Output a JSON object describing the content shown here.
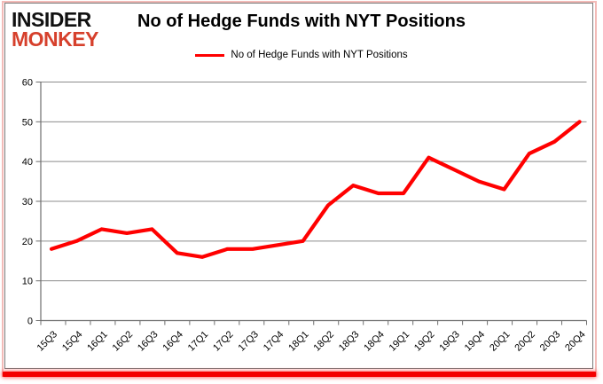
{
  "branding": {
    "line1": "INSIDER",
    "line2": "MONKEY",
    "accent_color": "#d6402c"
  },
  "legend": {
    "label": "No of Hedge Funds with NYT Positions",
    "line_color": "#ff0000"
  },
  "chart_data": {
    "type": "line",
    "title": "No of Hedge Funds with NYT Positions",
    "categories": [
      "15Q3",
      "15Q4",
      "16Q1",
      "16Q2",
      "16Q3",
      "16Q4",
      "17Q1",
      "17Q2",
      "17Q3",
      "17Q4",
      "18Q1",
      "18Q2",
      "18Q3",
      "18Q4",
      "19Q1",
      "19Q2",
      "19Q3",
      "19Q4",
      "20Q1",
      "20Q2",
      "20Q3",
      "20Q4"
    ],
    "series": [
      {
        "name": "No of Hedge Funds with NYT Positions",
        "color": "#ff0000",
        "values": [
          18,
          20,
          23,
          22,
          23,
          17,
          16,
          18,
          18,
          19,
          20,
          29,
          34,
          32,
          32,
          41,
          38,
          35,
          33,
          42,
          45,
          50
        ]
      }
    ],
    "xlabel": "",
    "ylabel": "",
    "ylim": [
      0,
      60
    ],
    "yticks": [
      0,
      10,
      20,
      30,
      40,
      50,
      60
    ],
    "grid": true,
    "legend_position": "top-center",
    "colors": {
      "gridline": "#8c8c8c",
      "axis": "#6e6e6e",
      "tick_label": "#000000"
    }
  }
}
